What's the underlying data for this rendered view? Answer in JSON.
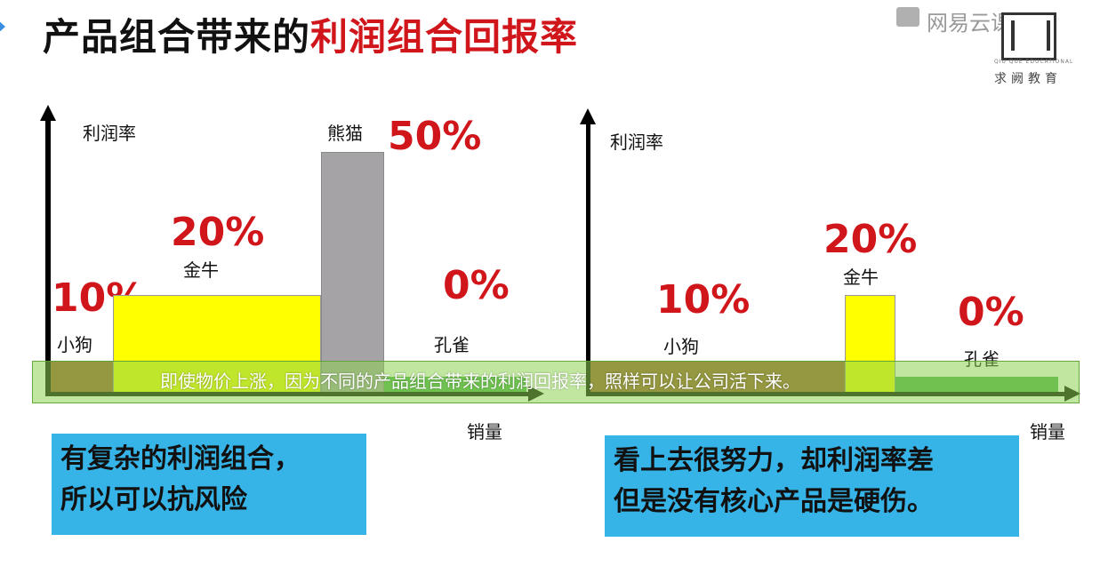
{
  "slide": {
    "title_part1": "产品组合带来的",
    "title_part2": "利润组合回报率"
  },
  "watermark": {
    "site": "网易云课堂",
    "logo_small": "QIU QUE EDUCATIONAL",
    "logo_name": "求阙教育"
  },
  "chart_left": {
    "ylabel": "利润率",
    "xlabel": "销量",
    "items": [
      {
        "name": "小狗",
        "pct": "10%",
        "color": "#a0522d"
      },
      {
        "name": "金牛",
        "pct": "20%",
        "color": "#ffff00"
      },
      {
        "name": "熊猫",
        "pct": "50%",
        "color": "#a6a3a6"
      },
      {
        "name": "孔雀",
        "pct": "0%",
        "color": "#4caf50"
      }
    ]
  },
  "chart_right": {
    "ylabel": "利润率",
    "xlabel": "销量",
    "items": [
      {
        "name": "小狗",
        "pct": "10%",
        "color": "#a0522d"
      },
      {
        "name": "金牛",
        "pct": "20%",
        "color": "#ffff00"
      },
      {
        "name": "孔雀",
        "pct": "0%",
        "color": "#4caf50"
      }
    ]
  },
  "subtitle": "即使物价上涨，因为不同的产品组合带来的利润回报率，照样可以让公司活下来。",
  "notes": {
    "left_line1": "有复杂的利润组合，",
    "left_line2": "所以可以抗风险",
    "right_line1": "看上去很努力，却利润率差",
    "right_line2": "但是没有核心产品是硬伤。"
  }
}
